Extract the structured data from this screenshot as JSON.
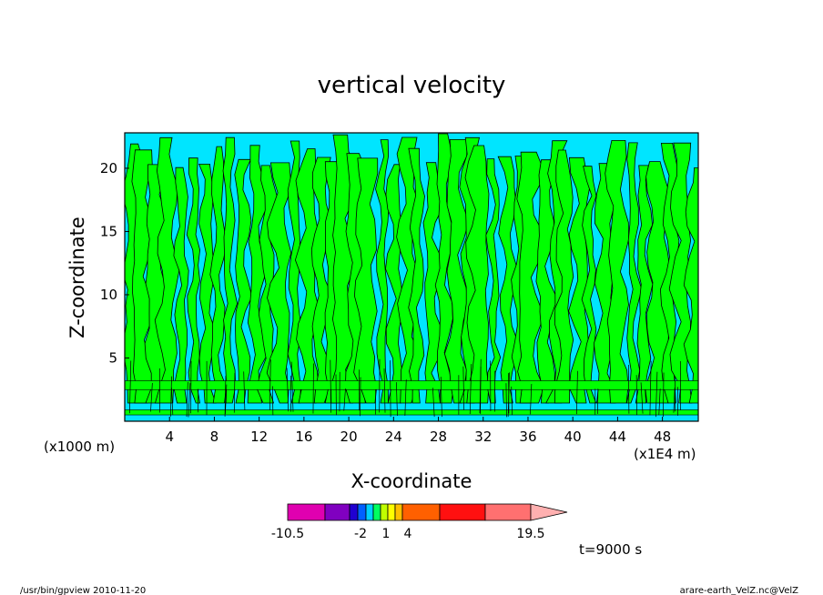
{
  "chart_data": {
    "type": "contour",
    "title": "vertical velocity",
    "xlabel": "X-coordinate",
    "ylabel": "Z-coordinate",
    "x_ticks": [
      4,
      8,
      12,
      16,
      20,
      24,
      28,
      32,
      36,
      40,
      44,
      48
    ],
    "y_ticks": [
      5,
      10,
      15,
      20
    ],
    "xlim": [
      0,
      51.2
    ],
    "ylim": [
      0,
      22.8
    ],
    "x_unit": "(x1E4 m)",
    "y_unit": "(x1000 m)",
    "colorbar": {
      "colors": [
        "#e000b0",
        "#8000c0",
        "#2000d0",
        "#0060ff",
        "#00d0ff",
        "#00ff60",
        "#c0ff00",
        "#ffff00",
        "#ffc000",
        "#ff6000",
        "#ff1010",
        "#ff7070"
      ],
      "arrow_color": "#ffb0b0",
      "labels": [
        "-10.5",
        "-2",
        "1",
        "4",
        "19.5"
      ],
      "label_values": [
        -10.5,
        -2,
        1,
        4,
        19.5
      ]
    },
    "field_colors": {
      "negative": "#00e5ff",
      "positive": "#00ff00"
    },
    "annotation": "t=9000 s"
  },
  "footer": {
    "left": "/usr/bin/gpview   2010-11-20",
    "right": "arare-earth_VelZ.nc@VelZ"
  }
}
